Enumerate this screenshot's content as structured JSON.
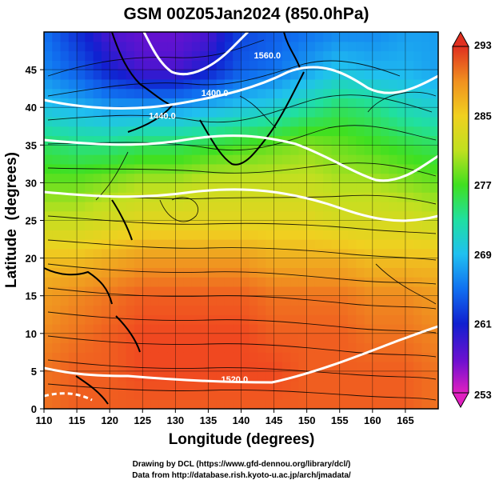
{
  "chart_data": {
    "type": "heatmap",
    "title": "GSM 00Z05Jan2024 (850.0hPa)",
    "xlabel": "Longitude (degrees)",
    "ylabel": "Latitude  (degrees)",
    "xlim": [
      110,
      170
    ],
    "ylim": [
      0,
      50
    ],
    "xticks": [
      "110",
      "115",
      "120",
      "125",
      "130",
      "135",
      "140",
      "145",
      "150",
      "155",
      "160",
      "165"
    ],
    "yticks": [
      "0",
      "5",
      "10",
      "15",
      "20",
      "25",
      "30",
      "35",
      "40",
      "45"
    ],
    "grid": true,
    "colorbar": {
      "min": 253,
      "max": 293,
      "ticks": [
        "293",
        "285",
        "277",
        "269",
        "261",
        "253"
      ],
      "colors": [
        "#e020c0",
        "#7010d0",
        "#1020d0",
        "#1070f0",
        "#20c0f0",
        "#20e0a0",
        "#40e020",
        "#c0e020",
        "#f0d020",
        "#f09020",
        "#f04020",
        "#e03020"
      ]
    },
    "field": [
      {
        "lat": 50,
        "values": [
          264,
          261,
          258,
          257,
          257,
          258,
          262,
          263,
          264,
          265,
          265,
          266,
          266
        ]
      },
      {
        "lat": 45,
        "values": [
          265,
          263,
          260,
          258,
          258,
          260,
          263,
          264,
          266,
          268,
          267,
          267,
          266
        ]
      },
      {
        "lat": 40,
        "values": [
          268,
          267,
          266,
          266,
          266,
          267,
          268,
          269,
          271,
          273,
          272,
          270,
          269
        ]
      },
      {
        "lat": 35,
        "values": [
          273,
          272,
          272,
          273,
          273,
          274,
          275,
          276,
          277,
          276,
          275,
          274,
          273
        ]
      },
      {
        "lat": 30,
        "values": [
          276,
          276,
          277,
          278,
          278,
          279,
          279,
          279,
          279,
          278,
          278,
          277,
          276
        ]
      },
      {
        "lat": 25,
        "values": [
          279,
          279,
          280,
          281,
          281,
          281,
          281,
          281,
          281,
          280,
          280,
          280,
          279
        ]
      },
      {
        "lat": 20,
        "values": [
          283,
          283,
          284,
          285,
          285,
          285,
          285,
          284,
          284,
          284,
          283,
          283,
          283
        ]
      },
      {
        "lat": 15,
        "values": [
          285,
          286,
          287,
          288,
          288,
          288,
          288,
          287,
          287,
          287,
          286,
          286,
          285
        ]
      },
      {
        "lat": 10,
        "values": [
          286,
          287,
          288,
          289,
          289,
          289,
          289,
          288,
          288,
          288,
          287,
          287,
          286
        ]
      },
      {
        "lat": 5,
        "values": [
          287,
          288,
          288,
          289,
          289,
          289,
          289,
          289,
          288,
          288,
          288,
          288,
          287
        ]
      },
      {
        "lat": 0,
        "values": [
          287,
          288,
          288,
          288,
          288,
          288,
          288,
          288,
          288,
          288,
          288,
          288,
          287
        ]
      }
    ],
    "field_lons": [
      110,
      115,
      120,
      125,
      130,
      135,
      140,
      145,
      150,
      155,
      160,
      165,
      170
    ],
    "contour_labels": [
      {
        "text": "1560.0",
        "lon": 144,
        "lat": 46.5
      },
      {
        "text": "1400.0",
        "lon": 136,
        "lat": 41.5
      },
      {
        "text": "1440.0",
        "lon": 128,
        "lat": 38.5
      },
      {
        "text": "1520.0",
        "lon": 139,
        "lat": 3.5
      }
    ]
  },
  "credits": {
    "line1": "Drawing by DCL (https://www.gfd-dennou.org/library/dcl/)",
    "line2": "Data from http://database.rish.kyoto-u.ac.jp/arch/jmadata/"
  }
}
